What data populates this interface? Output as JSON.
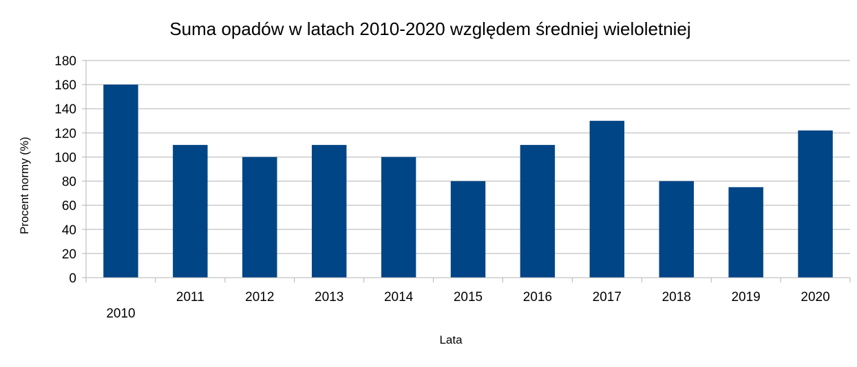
{
  "chart_data": {
    "type": "bar",
    "title": "Suma opadów w latach 2010-2020 względem średniej wieloletniej",
    "xlabel": "Lata",
    "ylabel": "Procent normy (%)",
    "categories": [
      "2010",
      "2011",
      "2012",
      "2013",
      "2014",
      "2015",
      "2016",
      "2017",
      "2018",
      "2019",
      "2020"
    ],
    "values": [
      160,
      110,
      100,
      110,
      100,
      80,
      110,
      130,
      80,
      75,
      122
    ],
    "ylim": [
      0,
      180
    ],
    "yticks": [
      0,
      20,
      40,
      60,
      80,
      100,
      120,
      140,
      160,
      180
    ],
    "grid": true,
    "legend": "none",
    "bar_color": "#004586"
  }
}
